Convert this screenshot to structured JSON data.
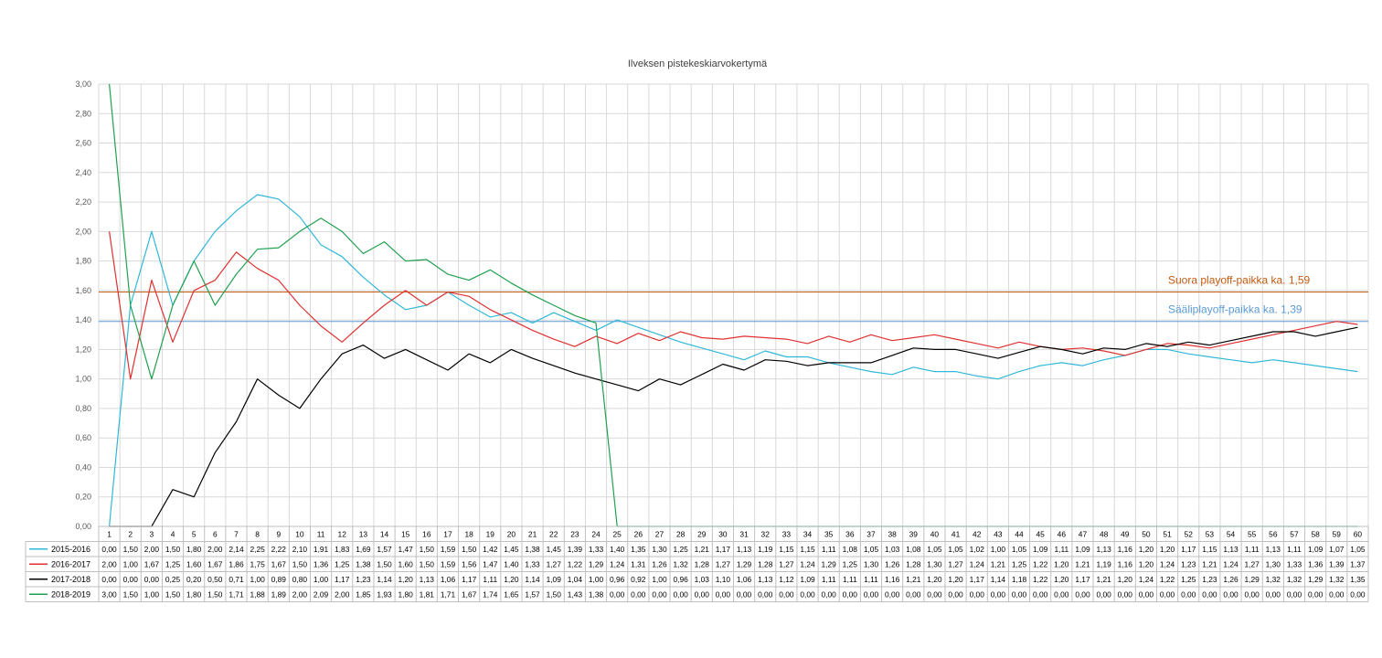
{
  "chart_data": {
    "type": "line",
    "title": "Ilveksen pistekeskiarvokertymä",
    "ylim": [
      0,
      3
    ],
    "yticks": [
      "0,00",
      "0,20",
      "0,40",
      "0,60",
      "0,80",
      "1,00",
      "1,20",
      "1,40",
      "1,60",
      "1,80",
      "2,00",
      "2,20",
      "2,40",
      "2,60",
      "2,80",
      "3,00"
    ],
    "grid": true,
    "legend": "data-table",
    "x": [
      1,
      2,
      3,
      4,
      5,
      6,
      7,
      8,
      9,
      10,
      11,
      12,
      13,
      14,
      15,
      16,
      17,
      18,
      19,
      20,
      21,
      22,
      23,
      24,
      25,
      26,
      27,
      28,
      29,
      30,
      31,
      32,
      33,
      34,
      35,
      36,
      37,
      38,
      39,
      40,
      41,
      42,
      43,
      44,
      45,
      46,
      47,
      48,
      49,
      50,
      51,
      52,
      53,
      54,
      55,
      56,
      57,
      58,
      59,
      60
    ],
    "series": [
      {
        "name": "2015-2016",
        "color": "#30b8d8",
        "values": [
          0.0,
          1.5,
          2.0,
          1.5,
          1.8,
          2.0,
          2.14,
          2.25,
          2.22,
          2.1,
          1.91,
          1.83,
          1.69,
          1.57,
          1.47,
          1.5,
          1.59,
          1.5,
          1.42,
          1.45,
          1.38,
          1.45,
          1.39,
          1.33,
          1.4,
          1.35,
          1.3,
          1.25,
          1.21,
          1.17,
          1.13,
          1.19,
          1.15,
          1.15,
          1.11,
          1.08,
          1.05,
          1.03,
          1.08,
          1.05,
          1.05,
          1.02,
          1.0,
          1.05,
          1.09,
          1.11,
          1.09,
          1.13,
          1.16,
          1.2,
          1.2,
          1.17,
          1.15,
          1.13,
          1.11,
          1.13,
          1.11,
          1.09,
          1.07,
          1.05
        ]
      },
      {
        "name": "2016-2017",
        "color": "#e03030",
        "values": [
          2.0,
          1.0,
          1.67,
          1.25,
          1.6,
          1.67,
          1.86,
          1.75,
          1.67,
          1.5,
          1.36,
          1.25,
          1.38,
          1.5,
          1.6,
          1.5,
          1.59,
          1.56,
          1.47,
          1.4,
          1.33,
          1.27,
          1.22,
          1.29,
          1.24,
          1.31,
          1.26,
          1.32,
          1.28,
          1.27,
          1.29,
          1.28,
          1.27,
          1.24,
          1.29,
          1.25,
          1.3,
          1.26,
          1.28,
          1.3,
          1.27,
          1.24,
          1.21,
          1.25,
          1.22,
          1.2,
          1.21,
          1.19,
          1.16,
          1.2,
          1.24,
          1.23,
          1.21,
          1.24,
          1.27,
          1.3,
          1.33,
          1.36,
          1.39,
          1.37
        ]
      },
      {
        "name": "2017-2018",
        "color": "#000000",
        "values": [
          0.0,
          0.0,
          0.0,
          0.25,
          0.2,
          0.5,
          0.71,
          1.0,
          0.89,
          0.8,
          1.0,
          1.17,
          1.23,
          1.14,
          1.2,
          1.13,
          1.06,
          1.17,
          1.11,
          1.2,
          1.14,
          1.09,
          1.04,
          1.0,
          0.96,
          0.92,
          1.0,
          0.96,
          1.03,
          1.1,
          1.06,
          1.13,
          1.12,
          1.09,
          1.11,
          1.11,
          1.11,
          1.16,
          1.21,
          1.2,
          1.2,
          1.17,
          1.14,
          1.18,
          1.22,
          1.2,
          1.17,
          1.21,
          1.2,
          1.24,
          1.22,
          1.25,
          1.23,
          1.26,
          1.29,
          1.32,
          1.32,
          1.29,
          1.32,
          1.35
        ]
      },
      {
        "name": "2018-2019",
        "color": "#20a050",
        "values": [
          3.0,
          1.5,
          1.0,
          1.5,
          1.8,
          1.5,
          1.71,
          1.88,
          1.89,
          2.0,
          2.09,
          2.0,
          1.85,
          1.93,
          1.8,
          1.81,
          1.71,
          1.67,
          1.74,
          1.65,
          1.57,
          1.5,
          1.43,
          1.38,
          0.0,
          0.0,
          0.0,
          0.0,
          0.0,
          0.0,
          0.0,
          0.0,
          0.0,
          0.0,
          0.0,
          0.0,
          0.0,
          0.0,
          0.0,
          0.0,
          0.0,
          0.0,
          0.0,
          0.0,
          0.0,
          0.0,
          0.0,
          0.0,
          0.0,
          0.0,
          0.0,
          0.0,
          0.0,
          0.0,
          0.0,
          0.0,
          0.0,
          0.0,
          0.0,
          0.0
        ]
      }
    ],
    "annotations": [
      {
        "label": "Suora playoff-paikka ka. 1,59",
        "value": 1.59,
        "color": "#c55a11"
      },
      {
        "label": "Sääliplayoff-paikka ka. 1,39",
        "value": 1.39,
        "color": "#5b9bd5"
      }
    ]
  }
}
